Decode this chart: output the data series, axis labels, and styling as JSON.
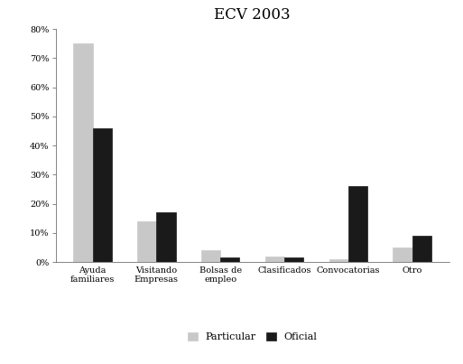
{
  "title": "ECV 2003",
  "categories": [
    "Ayuda\nfamiliares",
    "Visitando\nEmpresas",
    "Bolsas de\nempleo",
    "Clasificados",
    "Convocatorias",
    "Otro"
  ],
  "particular": [
    75,
    14,
    4,
    2,
    1,
    5
  ],
  "oficial": [
    46,
    17,
    1.5,
    1.5,
    26,
    9
  ],
  "particular_color": "#c8c8c8",
  "oficial_color": "#1a1a1a",
  "legend_labels": [
    "Particular",
    "Oficial"
  ],
  "ylim": [
    0,
    80
  ],
  "yticks": [
    0,
    10,
    20,
    30,
    40,
    50,
    60,
    70,
    80
  ],
  "bar_width": 0.3,
  "background_color": "#ffffff",
  "title_fontsize": 12,
  "tick_fontsize": 7,
  "legend_fontsize": 8
}
